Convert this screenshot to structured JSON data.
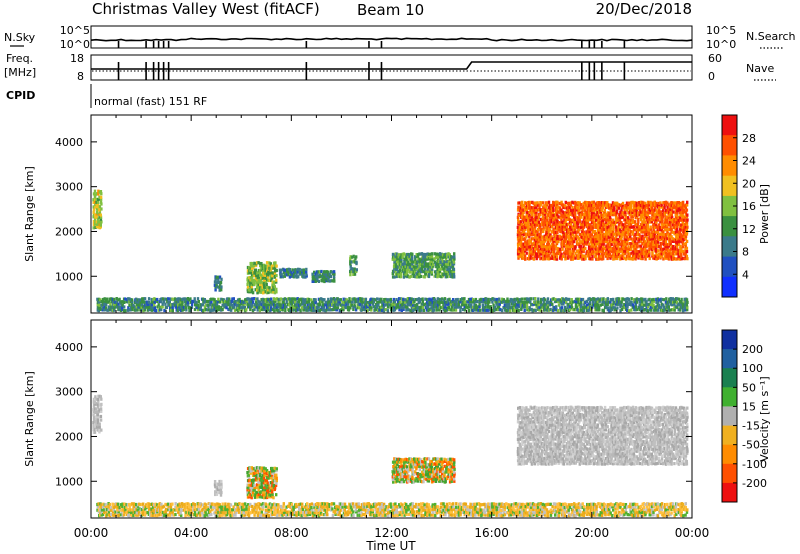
{
  "header": {
    "title": "Christmas Valley West (fitACF)",
    "beam": "Beam 10",
    "date": "20/Dec/2018"
  },
  "status": {
    "nsky_label": "N.Sky",
    "nsky_ticks": [
      "10^5",
      "10^0"
    ],
    "nsearch_label": "N.Search",
    "freq_label": "Freq.",
    "freq_unit": "[MHz]",
    "freq_ticks": [
      "18",
      "8"
    ],
    "nave_label": "Nave",
    "nave_ticks": [
      "60",
      "0"
    ],
    "cpid_label": "CPID",
    "cpid_text": "normal (fast) 151 RF"
  },
  "chart_data": [
    {
      "type": "heatmap",
      "name": "power-panel",
      "ylabel": "Slant Range [km]",
      "xlabel": "Time UT",
      "xlim": [
        0,
        24
      ],
      "ylim": [
        180,
        4600
      ],
      "xticks": [
        "00:00",
        "04:00",
        "08:00",
        "12:00",
        "16:00",
        "20:00",
        "00:00"
      ],
      "yticks": [
        1000,
        2000,
        3000,
        4000
      ],
      "colorbar": {
        "label": "Power [dB]",
        "range": [
          0,
          32
        ],
        "ticks": [
          4,
          8,
          12,
          16,
          20,
          24,
          28
        ],
        "colors": [
          "#1030ff",
          "#2050c0",
          "#3a7a8a",
          "#3a9040",
          "#80c040",
          "#f0c020",
          "#ff8c00",
          "#ff5000",
          "#ee1010"
        ]
      },
      "regions": [
        {
          "t": [
            0.05,
            0.4
          ],
          "r": [
            2050,
            2900
          ],
          "level": 18
        },
        {
          "t": [
            0.2,
            23.8
          ],
          "r": [
            200,
            500
          ],
          "level": 10
        },
        {
          "t": [
            4.9,
            5.2
          ],
          "r": [
            650,
            1000
          ],
          "level": 9
        },
        {
          "t": [
            6.2,
            7.4
          ],
          "r": [
            600,
            1300
          ],
          "level": 15
        },
        {
          "t": [
            7.5,
            8.6
          ],
          "r": [
            950,
            1150
          ],
          "level": 8
        },
        {
          "t": [
            8.8,
            9.7
          ],
          "r": [
            850,
            1100
          ],
          "level": 10
        },
        {
          "t": [
            10.3,
            10.6
          ],
          "r": [
            1000,
            1450
          ],
          "level": 12
        },
        {
          "t": [
            12.0,
            14.5
          ],
          "r": [
            950,
            1500
          ],
          "level": 12
        },
        {
          "t": [
            17.0,
            23.8
          ],
          "r": [
            1350,
            2650
          ],
          "level": 27
        }
      ]
    },
    {
      "type": "heatmap",
      "name": "velocity-panel",
      "ylabel": "Slant Range [km]",
      "xlabel": "Time UT",
      "xlim": [
        0,
        24
      ],
      "ylim": [
        180,
        4600
      ],
      "xticks": [
        "00:00",
        "04:00",
        "08:00",
        "12:00",
        "16:00",
        "20:00",
        "00:00"
      ],
      "yticks": [
        1000,
        2000,
        3000,
        4000
      ],
      "colorbar": {
        "label": "Velocity [m s⁻¹]",
        "range": [
          -250,
          250
        ],
        "ticks": [
          200,
          100,
          50,
          15,
          -15,
          -50,
          -100,
          -200
        ],
        "colors": [
          "#1030a0",
          "#2060a0",
          "#1a8050",
          "#40b030",
          "#b0b0b0",
          "#f0b020",
          "#ff8c00",
          "#ff5000",
          "#ee1010"
        ]
      },
      "regions": [
        {
          "t": [
            0.05,
            0.4
          ],
          "r": [
            2050,
            2900
          ],
          "level": "ground"
        },
        {
          "t": [
            0.2,
            23.8
          ],
          "r": [
            200,
            500
          ],
          "level": "slow-negative"
        },
        {
          "t": [
            4.9,
            5.2
          ],
          "r": [
            650,
            1000
          ],
          "level": "ground"
        },
        {
          "t": [
            6.2,
            7.4
          ],
          "r": [
            600,
            1300
          ],
          "level": "mixed"
        },
        {
          "t": [
            12.0,
            14.5
          ],
          "r": [
            950,
            1500
          ],
          "level": "mixed"
        },
        {
          "t": [
            17.0,
            23.8
          ],
          "r": [
            1350,
            2650
          ],
          "level": "ground"
        }
      ]
    }
  ]
}
